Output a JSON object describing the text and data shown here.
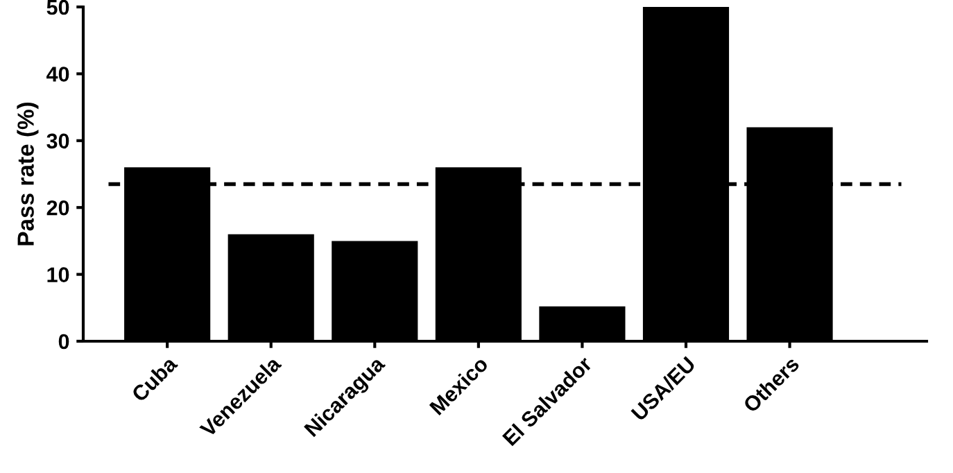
{
  "chart_data": {
    "type": "bar",
    "ylabel": "Pass rate (%)",
    "categories": [
      "Cuba",
      "Venezuela",
      "Nicaragua",
      "Mexico",
      "El Salvador",
      "USA/EU",
      "Others"
    ],
    "values": [
      26,
      16,
      15,
      26,
      5.2,
      50,
      32
    ],
    "color": "#000000",
    "ylim": [
      0,
      50
    ],
    "yticks": [
      0,
      10,
      20,
      30,
      40,
      50
    ],
    "grid": false,
    "ref_lines": [
      {
        "axis": "y",
        "value": 23.5,
        "color": "#000000",
        "line_style": "dashed"
      }
    ]
  }
}
